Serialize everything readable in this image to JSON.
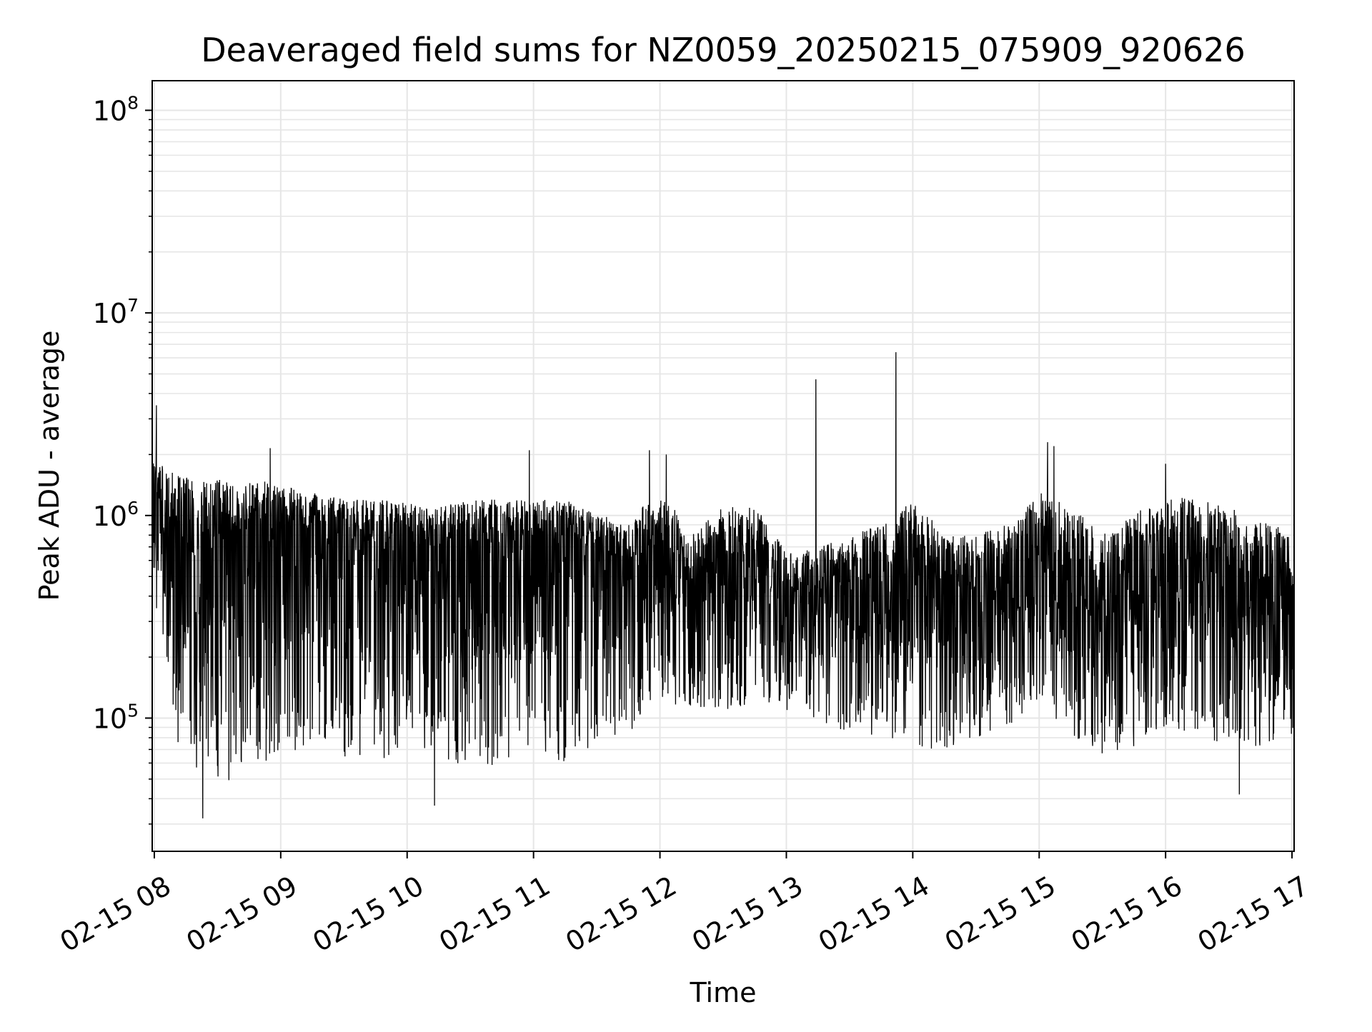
{
  "chart_data": {
    "type": "line",
    "title": "Deaveraged field sums for NZ0059_20250215_075909_920626",
    "xlabel": "Time",
    "ylabel": "Peak ADU - average",
    "yscale": "log",
    "ylim": [
      22000,
      140000000
    ],
    "xlim": [
      "2025-02-15 07:59",
      "2025-02-15 17:01"
    ],
    "grid": true,
    "line_color": "#000000",
    "x_ticks": [
      {
        "value": "2025-02-15 08:00",
        "label": "02-15 08"
      },
      {
        "value": "2025-02-15 09:00",
        "label": "02-15 09"
      },
      {
        "value": "2025-02-15 10:00",
        "label": "02-15 10"
      },
      {
        "value": "2025-02-15 11:00",
        "label": "02-15 11"
      },
      {
        "value": "2025-02-15 12:00",
        "label": "02-15 12"
      },
      {
        "value": "2025-02-15 13:00",
        "label": "02-15 13"
      },
      {
        "value": "2025-02-15 14:00",
        "label": "02-15 14"
      },
      {
        "value": "2025-02-15 15:00",
        "label": "02-15 15"
      },
      {
        "value": "2025-02-15 16:00",
        "label": "02-15 16"
      },
      {
        "value": "2025-02-15 17:00",
        "label": "02-15 17"
      }
    ],
    "y_ticks": [
      {
        "value": 100000,
        "base": "10",
        "exp": "5"
      },
      {
        "value": 1000000,
        "base": "10",
        "exp": "6"
      },
      {
        "value": 10000000,
        "base": "10",
        "exp": "7"
      },
      {
        "value": 100000000,
        "base": "10",
        "exp": "8"
      }
    ],
    "series": [
      {
        "envelope": {
          "x": [
            "2025-02-15 07:59",
            "2025-02-15 08:10",
            "2025-02-15 08:20",
            "2025-02-15 08:30",
            "2025-02-15 08:40",
            "2025-02-15 08:50",
            "2025-02-15 09:00",
            "2025-02-15 09:15",
            "2025-02-15 09:30",
            "2025-02-15 09:45",
            "2025-02-15 10:00",
            "2025-02-15 10:15",
            "2025-02-15 10:30",
            "2025-02-15 10:45",
            "2025-02-15 11:00",
            "2025-02-15 11:15",
            "2025-02-15 11:30",
            "2025-02-15 11:45",
            "2025-02-15 12:00",
            "2025-02-15 12:15",
            "2025-02-15 12:30",
            "2025-02-15 12:45",
            "2025-02-15 13:00",
            "2025-02-15 13:15",
            "2025-02-15 13:30",
            "2025-02-15 13:45",
            "2025-02-15 14:00",
            "2025-02-15 14:15",
            "2025-02-15 14:30",
            "2025-02-15 14:45",
            "2025-02-15 15:00",
            "2025-02-15 15:15",
            "2025-02-15 15:30",
            "2025-02-15 15:45",
            "2025-02-15 16:00",
            "2025-02-15 16:15",
            "2025-02-15 16:30",
            "2025-02-15 16:45",
            "2025-02-15 17:00"
          ],
          "upper": [
            1900000,
            1600000,
            1500000,
            1500000,
            1500000,
            1500000,
            1400000,
            1300000,
            1200000,
            1200000,
            1150000,
            1100000,
            1200000,
            1200000,
            1200000,
            1200000,
            1000000,
            950000,
            1300000,
            800000,
            1100000,
            1100000,
            650000,
            700000,
            800000,
            900000,
            1200000,
            800000,
            800000,
            900000,
            1300000,
            1100000,
            800000,
            1000000,
            1300000,
            1200000,
            1100000,
            1000000,
            800000
          ],
          "typical": [
            900000,
            700000,
            600000,
            700000,
            800000,
            900000,
            900000,
            800000,
            800000,
            700000,
            700000,
            650000,
            700000,
            700000,
            750000,
            750000,
            650000,
            600000,
            650000,
            450000,
            550000,
            550000,
            380000,
            380000,
            420000,
            450000,
            600000,
            420000,
            420000,
            450000,
            550000,
            500000,
            350000,
            450000,
            600000,
            550000,
            480000,
            420000,
            380000
          ],
          "lower": [
            400000,
            80000,
            35000,
            40000,
            55000,
            60000,
            65000,
            70000,
            60000,
            60000,
            70000,
            60000,
            55000,
            60000,
            70000,
            60000,
            75000,
            80000,
            120000,
            110000,
            110000,
            110000,
            110000,
            90000,
            85000,
            80000,
            70000,
            70000,
            80000,
            90000,
            120000,
            80000,
            65000,
            70000,
            90000,
            80000,
            70000,
            70000,
            80000
          ]
        },
        "peaks": [
          {
            "x": "2025-02-15 08:01",
            "y": 3500000
          },
          {
            "x": "2025-02-15 08:23",
            "y": 32000
          },
          {
            "x": "2025-02-15 08:55",
            "y": 2150000
          },
          {
            "x": "2025-02-15 10:13",
            "y": 37000
          },
          {
            "x": "2025-02-15 10:58",
            "y": 2100000
          },
          {
            "x": "2025-02-15 11:55",
            "y": 2100000
          },
          {
            "x": "2025-02-15 12:03",
            "y": 2000000
          },
          {
            "x": "2025-02-15 13:14",
            "y": 4700000
          },
          {
            "x": "2025-02-15 13:52",
            "y": 6400000
          },
          {
            "x": "2025-02-15 15:04",
            "y": 2300000
          },
          {
            "x": "2025-02-15 15:07",
            "y": 2200000
          },
          {
            "x": "2025-02-15 16:00",
            "y": 1800000
          },
          {
            "x": "2025-02-15 16:35",
            "y": 42000
          }
        ]
      }
    ]
  }
}
